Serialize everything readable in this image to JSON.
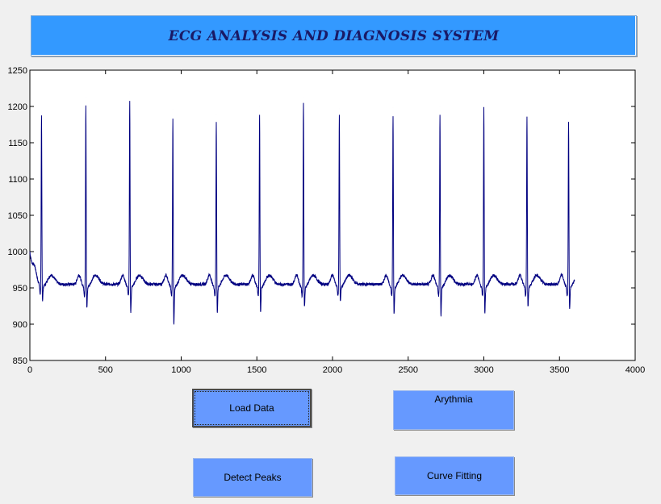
{
  "app": {
    "title": "ECG ANALYSIS AND DIAGNOSIS SYSTEM"
  },
  "buttons": {
    "load_data": "Load Data",
    "arrhythmia": "Arythmia",
    "detect_peaks": "Detect Peaks",
    "curve_fitting": "Curve Fitting"
  },
  "colors": {
    "title_bg": "#3399ff",
    "title_text": "#1a1a66",
    "button_bg": "#6699ff",
    "trace": "#000080"
  },
  "chart_data": {
    "type": "line",
    "title": "",
    "xlabel": "",
    "ylabel": "",
    "xlim": [
      0,
      4000
    ],
    "ylim": [
      850,
      1250
    ],
    "xticks": [
      0,
      500,
      1000,
      1500,
      2000,
      2500,
      3000,
      3500,
      4000
    ],
    "yticks": [
      850,
      900,
      950,
      1000,
      1050,
      1100,
      1150,
      1200,
      1250
    ],
    "grid": false,
    "series": [
      {
        "color": "#000080",
        "baseline": 955,
        "x_end": 3600,
        "start_value": 1000,
        "r_peaks": [
          {
            "x": 77,
            "r": 1192,
            "s": 928
          },
          {
            "x": 370,
            "r": 1212,
            "s": 918
          },
          {
            "x": 660,
            "r": 1217,
            "s": 912
          },
          {
            "x": 945,
            "r": 1196,
            "s": 895
          },
          {
            "x": 1232,
            "r": 1188,
            "s": 912
          },
          {
            "x": 1518,
            "r": 1200,
            "s": 912
          },
          {
            "x": 1808,
            "r": 1213,
            "s": 920
          },
          {
            "x": 2045,
            "r": 1197,
            "s": 928
          },
          {
            "x": 2400,
            "r": 1198,
            "s": 910
          },
          {
            "x": 2710,
            "r": 1200,
            "s": 908
          },
          {
            "x": 3000,
            "r": 1208,
            "s": 912
          },
          {
            "x": 3285,
            "r": 1195,
            "s": 920
          },
          {
            "x": 3560,
            "r": 1190,
            "s": 917
          }
        ]
      }
    ]
  }
}
